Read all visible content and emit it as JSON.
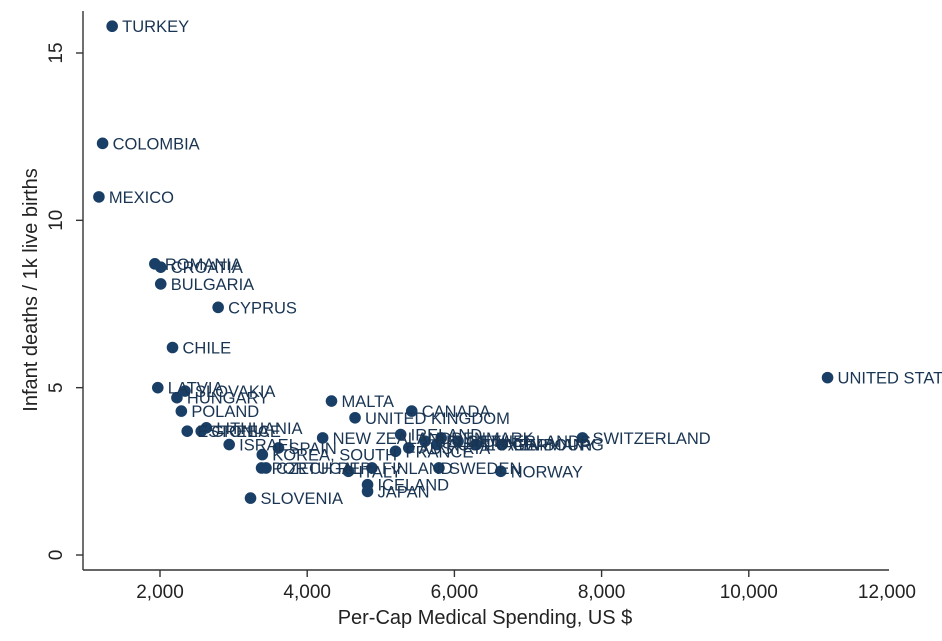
{
  "chart_data": {
    "type": "scatter",
    "title": "",
    "xlabel": "Per-Cap Medical Spending, US $",
    "ylabel": "Infant deaths / 1k live births",
    "xlim": [
      1000,
      12000
    ],
    "ylim": [
      0,
      16
    ],
    "x_ticks": [
      2000,
      4000,
      6000,
      8000,
      10000,
      12000
    ],
    "x_tick_labels": [
      "2,000",
      "4,000",
      "6,000",
      "8,000",
      "10,000",
      "12,000"
    ],
    "y_ticks": [
      0,
      5,
      10,
      15
    ],
    "y_tick_labels": [
      "0",
      "5",
      "10",
      "15"
    ],
    "grid": false,
    "marker_color": "#1a3f66",
    "label_color": "#1a3553",
    "points": [
      {
        "label": "TURKEY",
        "x": 1350,
        "y": 15.8
      },
      {
        "label": "COLOMBIA",
        "x": 1220,
        "y": 12.3
      },
      {
        "label": "MEXICO",
        "x": 1170,
        "y": 10.7
      },
      {
        "label": "ROMANIA",
        "x": 1930,
        "y": 8.7
      },
      {
        "label": "CROATIA",
        "x": 2010,
        "y": 8.6
      },
      {
        "label": "BULGARIA",
        "x": 2010,
        "y": 8.1
      },
      {
        "label": "CYPRUS",
        "x": 2790,
        "y": 7.4
      },
      {
        "label": "CHILE",
        "x": 2170,
        "y": 6.2
      },
      {
        "label": "LATVIA",
        "x": 1970,
        "y": 5.0
      },
      {
        "label": "SLOVAKIA",
        "x": 2340,
        "y": 4.9
      },
      {
        "label": "HUNGARY",
        "x": 2230,
        "y": 4.7
      },
      {
        "label": "POLAND",
        "x": 2290,
        "y": 4.3
      },
      {
        "label": "LITHUANIA",
        "x": 2630,
        "y": 3.8
      },
      {
        "label": "ESTONIA",
        "x": 2370,
        "y": 3.7
      },
      {
        "label": "GREECE",
        "x": 2560,
        "y": 3.7
      },
      {
        "label": "ISRAEL",
        "x": 2940,
        "y": 3.3
      },
      {
        "label": "SPAIN",
        "x": 3610,
        "y": 3.2
      },
      {
        "label": "KOREA, SOUTH",
        "x": 3390,
        "y": 3.0
      },
      {
        "label": "PORTUGAL",
        "x": 3380,
        "y": 2.6
      },
      {
        "label": "CZECH REP.",
        "x": 3440,
        "y": 2.6
      },
      {
        "label": "SLOVENIA",
        "x": 3230,
        "y": 1.7
      },
      {
        "label": "MALTA",
        "x": 4330,
        "y": 4.6
      },
      {
        "label": "UNITED KINGDOM",
        "x": 4650,
        "y": 4.1
      },
      {
        "label": "NEW ZEALAND",
        "x": 4210,
        "y": 3.5
      },
      {
        "label": "ITALY",
        "x": 4560,
        "y": 2.5
      },
      {
        "label": "FINLAND",
        "x": 4880,
        "y": 2.6
      },
      {
        "label": "ICELAND",
        "x": 4820,
        "y": 2.1
      },
      {
        "label": "JAPAN",
        "x": 4820,
        "y": 1.9
      },
      {
        "label": "CANADA",
        "x": 5420,
        "y": 4.3
      },
      {
        "label": "IRELAND",
        "x": 5270,
        "y": 3.6
      },
      {
        "label": "AUSTRIA",
        "x": 5380,
        "y": 3.2
      },
      {
        "label": "FRANCE",
        "x": 5200,
        "y": 3.1
      },
      {
        "label": "BELGIUM",
        "x": 5600,
        "y": 3.4
      },
      {
        "label": "AUSTRALIA",
        "x": 5760,
        "y": 3.3
      },
      {
        "label": "DENMARK",
        "x": 5820,
        "y": 3.5
      },
      {
        "label": "NETHERLANDS",
        "x": 6050,
        "y": 3.4
      },
      {
        "label": "LUXEMBOURG",
        "x": 6300,
        "y": 3.3
      },
      {
        "label": "GERMANY",
        "x": 6650,
        "y": 3.3
      },
      {
        "label": "SWEDEN",
        "x": 5790,
        "y": 2.6
      },
      {
        "label": "NORWAY",
        "x": 6630,
        "y": 2.5
      },
      {
        "label": "SWITZERLAND",
        "x": 7740,
        "y": 3.5
      },
      {
        "label": "UNITED STATES",
        "x": 11070,
        "y": 5.3
      }
    ]
  }
}
